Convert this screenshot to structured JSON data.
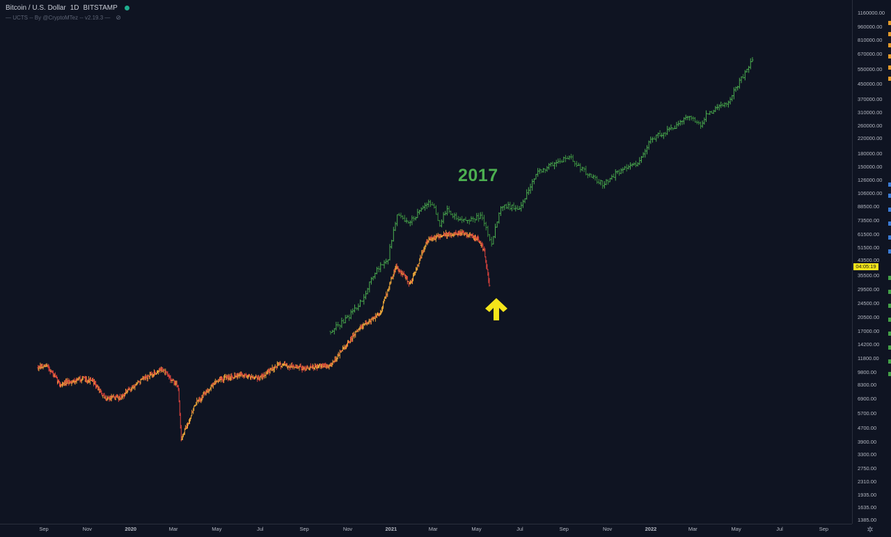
{
  "header": {
    "symbol": "Bitcoin / U.S. Dollar",
    "interval": "1D",
    "exchange": "BITSTAMP",
    "indicator": "— UCTS -- By @CryptoMTez -- v2.19.3 —"
  },
  "annotation": {
    "label": "2017"
  },
  "colors": {
    "background": "#0f1422",
    "current_candles": "#e8a43a",
    "current_down": "#e0443e",
    "fractal_2017": "#4caf50",
    "arrow": "#f5e51a",
    "price_badge": "#f5e51a"
  },
  "price_badge": {
    "text": "04:05:19"
  },
  "icons": [
    "live-dot-icon",
    "eye-off-icon",
    "up-arrow-icon",
    "settings-gear-icon"
  ],
  "chart_data": {
    "type": "candlestick",
    "scale": "log",
    "y_ticks": [
      "1160000.00",
      "960000.00",
      "810000.00",
      "670000.00",
      "550000.00",
      "450000.00",
      "370000.00",
      "310000.00",
      "260000.00",
      "220000.00",
      "180000.00",
      "150000.00",
      "126000.00",
      "106000.00",
      "88500.00",
      "73500.00",
      "61500.00",
      "51500.00",
      "43500.00",
      "35500.00",
      "29500.00",
      "24500.00",
      "20500.00",
      "17000.00",
      "14200.00",
      "11800.00",
      "9800.00",
      "8300.00",
      "6900.00",
      "5700.00",
      "4700.00",
      "3900.00",
      "3300.00",
      "2750.00",
      "2310.00",
      "1935.00",
      "1635.00",
      "1385.00"
    ],
    "x_ticks": [
      "Sep",
      "Nov",
      "2020",
      "Mar",
      "May",
      "Jul",
      "Sep",
      "Nov",
      "2021",
      "Mar",
      "May",
      "Jul",
      "Sep",
      "Nov",
      "2022",
      "Mar",
      "May",
      "Jul",
      "Sep"
    ],
    "ylim": [
      1385,
      1400000
    ],
    "series": [
      {
        "name": "BTC/USD",
        "color": "#e8a43a",
        "points": [
          [
            "2019-08-24",
            10500
          ],
          [
            "2019-09-06",
            10700
          ],
          [
            "2019-09-24",
            8400
          ],
          [
            "2019-10-25",
            9100
          ],
          [
            "2019-11-10",
            8700
          ],
          [
            "2019-11-25",
            7000
          ],
          [
            "2019-12-18",
            7100
          ],
          [
            "2020-01-14",
            8800
          ],
          [
            "2020-02-14",
            10300
          ],
          [
            "2020-03-08",
            8100
          ],
          [
            "2020-03-12",
            4000
          ],
          [
            "2020-04-01",
            6500
          ],
          [
            "2020-04-30",
            8800
          ],
          [
            "2020-06-01",
            9600
          ],
          [
            "2020-07-01",
            9200
          ],
          [
            "2020-07-27",
            11000
          ],
          [
            "2020-09-03",
            10400
          ],
          [
            "2020-10-08",
            10900
          ],
          [
            "2020-10-23",
            13000
          ],
          [
            "2020-11-18",
            17800
          ],
          [
            "2020-12-16",
            21500
          ],
          [
            "2021-01-08",
            40500
          ],
          [
            "2021-01-28",
            32000
          ],
          [
            "2021-02-21",
            57000
          ],
          [
            "2021-03-13",
            61000
          ],
          [
            "2021-04-14",
            63000
          ],
          [
            "2021-05-04",
            57000
          ],
          [
            "2021-05-12",
            49500
          ],
          [
            "2021-05-19",
            31000
          ]
        ]
      },
      {
        "name": "2017",
        "color": "#4caf50",
        "points": [
          [
            "2020-10-08",
            17000
          ],
          [
            "2020-10-30",
            20000
          ],
          [
            "2020-11-22",
            26000
          ],
          [
            "2020-12-10",
            38000
          ],
          [
            "2020-12-27",
            44000
          ],
          [
            "2021-01-10",
            82000
          ],
          [
            "2021-01-25",
            70000
          ],
          [
            "2021-02-10",
            84000
          ],
          [
            "2021-02-27",
            95000
          ],
          [
            "2021-03-10",
            70000
          ],
          [
            "2021-03-20",
            85000
          ],
          [
            "2021-04-10",
            73000
          ],
          [
            "2021-05-08",
            78000
          ],
          [
            "2021-05-22",
            55000
          ],
          [
            "2021-06-05",
            90000
          ],
          [
            "2021-07-01",
            88000
          ],
          [
            "2021-07-25",
            140000
          ],
          [
            "2021-08-20",
            160000
          ],
          [
            "2021-09-10",
            170000
          ],
          [
            "2021-10-01",
            140000
          ],
          [
            "2021-10-25",
            120000
          ],
          [
            "2021-11-15",
            140000
          ],
          [
            "2021-12-15",
            160000
          ],
          [
            "2022-01-01",
            220000
          ],
          [
            "2022-02-01",
            250000
          ],
          [
            "2022-02-25",
            300000
          ],
          [
            "2022-03-12",
            260000
          ],
          [
            "2022-03-20",
            300000
          ],
          [
            "2022-04-20",
            360000
          ],
          [
            "2022-05-10",
            500000
          ],
          [
            "2022-05-25",
            650000
          ]
        ]
      }
    ]
  }
}
